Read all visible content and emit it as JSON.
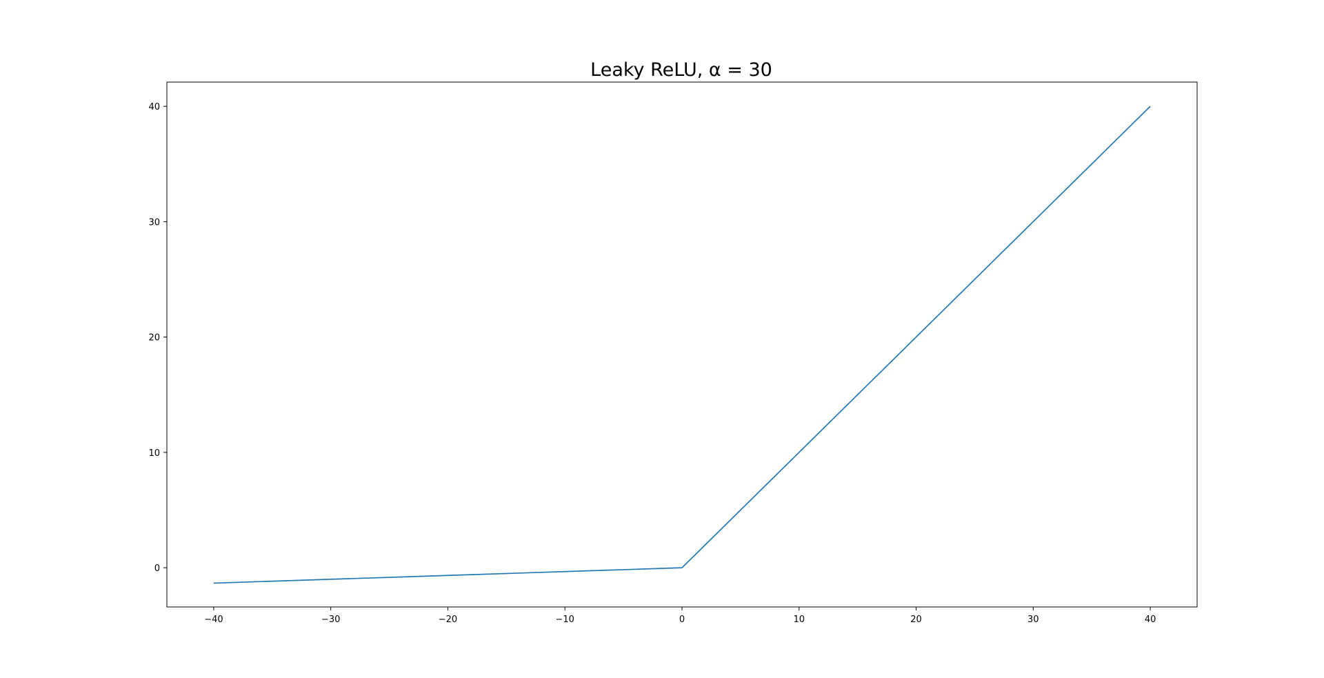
{
  "chart_data": {
    "type": "line",
    "title": "Leaky ReLU, α = 30",
    "xlabel": "",
    "ylabel": "",
    "xlim": [
      -44,
      44
    ],
    "ylim": [
      -3.4,
      42.1
    ],
    "xticks": [
      -40,
      -30,
      -20,
      -10,
      0,
      10,
      20,
      30,
      40
    ],
    "xtick_labels": [
      "−40",
      "−30",
      "−20",
      "−10",
      "0",
      "10",
      "20",
      "30",
      "40"
    ],
    "yticks": [
      0,
      10,
      20,
      30,
      40
    ],
    "ytick_labels": [
      "0",
      "10",
      "20",
      "30",
      "40"
    ],
    "grid": false,
    "series": [
      {
        "color": "#1f77b4",
        "x": [
          -40,
          0,
          40
        ],
        "y": [
          -1.333,
          0,
          40
        ]
      }
    ]
  }
}
